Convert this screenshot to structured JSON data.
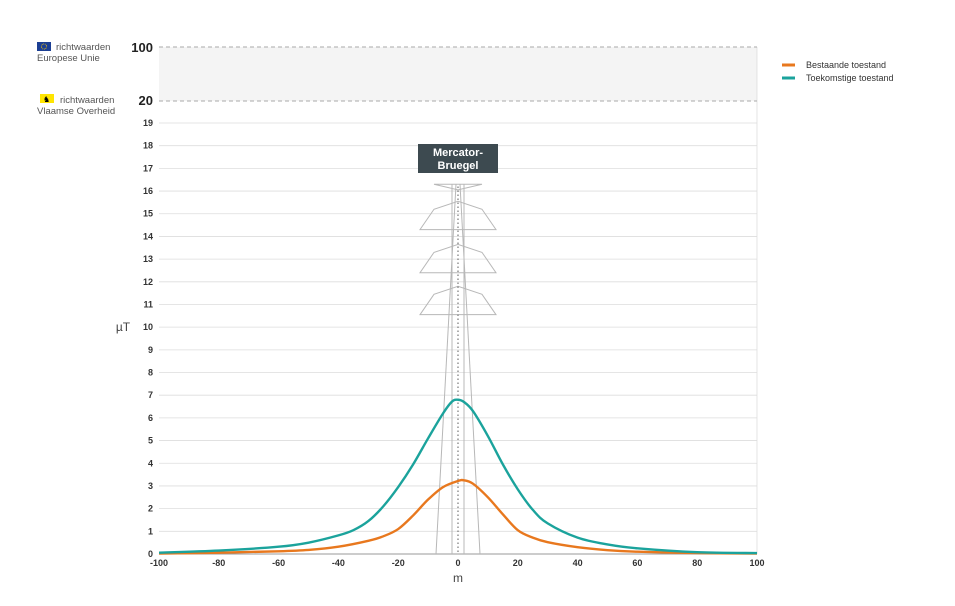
{
  "chart_data": {
    "type": "line",
    "xlabel": "m",
    "ylabel": "µT",
    "xlim": [
      -100,
      100
    ],
    "x_ticks": [
      -100,
      -80,
      -60,
      -40,
      -20,
      0,
      20,
      40,
      60,
      80,
      100
    ],
    "y_ticks": [
      0,
      1,
      2,
      3,
      4,
      5,
      6,
      7,
      8,
      9,
      10,
      11,
      12,
      13,
      14,
      15,
      16,
      17,
      18,
      19
    ],
    "y_top_ticks": [
      20,
      100
    ],
    "grid": true,
    "legend_position": "top-right",
    "series": [
      {
        "name": "Bestaande toestand",
        "color": "#E8781E",
        "x": [
          -100,
          -80,
          -60,
          -50,
          -40,
          -30,
          -25,
          -20,
          -15,
          -10,
          -5,
          0,
          2,
          5,
          10,
          15,
          20,
          25,
          30,
          40,
          50,
          60,
          80,
          100
        ],
        "y": [
          0.02,
          0.06,
          0.12,
          0.18,
          0.32,
          0.58,
          0.78,
          1.1,
          1.7,
          2.4,
          2.95,
          3.22,
          3.25,
          3.1,
          2.5,
          1.75,
          1.05,
          0.72,
          0.52,
          0.3,
          0.17,
          0.1,
          0.04,
          0.02
        ]
      },
      {
        "name": "Toekomstige toestand",
        "color": "#1BA39C",
        "x": [
          -100,
          -80,
          -60,
          -50,
          -40,
          -35,
          -30,
          -25,
          -20,
          -15,
          -10,
          -5,
          -2,
          0,
          2,
          5,
          10,
          15,
          20,
          25,
          30,
          40,
          50,
          60,
          80,
          100
        ],
        "y": [
          0.06,
          0.15,
          0.32,
          0.5,
          0.82,
          1.05,
          1.45,
          2.1,
          2.95,
          3.95,
          5.1,
          6.2,
          6.72,
          6.8,
          6.7,
          6.3,
          5.2,
          3.95,
          2.85,
          1.95,
          1.35,
          0.72,
          0.42,
          0.25,
          0.08,
          0.04
        ]
      }
    ]
  },
  "reference_lines": [
    {
      "value": "100",
      "label_line1": "richtwaarden",
      "label_line2": "Europese Unie",
      "icon": "eu-flag-icon"
    },
    {
      "value": "20",
      "label_line1": "richtwaarden",
      "label_line2": "Vlaamse Overheid",
      "icon": "flemish-lion-flag-icon"
    }
  ],
  "tower": {
    "label_line1": "Mercator-",
    "label_line2": "Bruegel"
  },
  "colors": {
    "grid": "#dddddd",
    "ref_band": "#f4f4f4",
    "tower": "#b8b8b8",
    "label_bg": "#3d4a50"
  }
}
